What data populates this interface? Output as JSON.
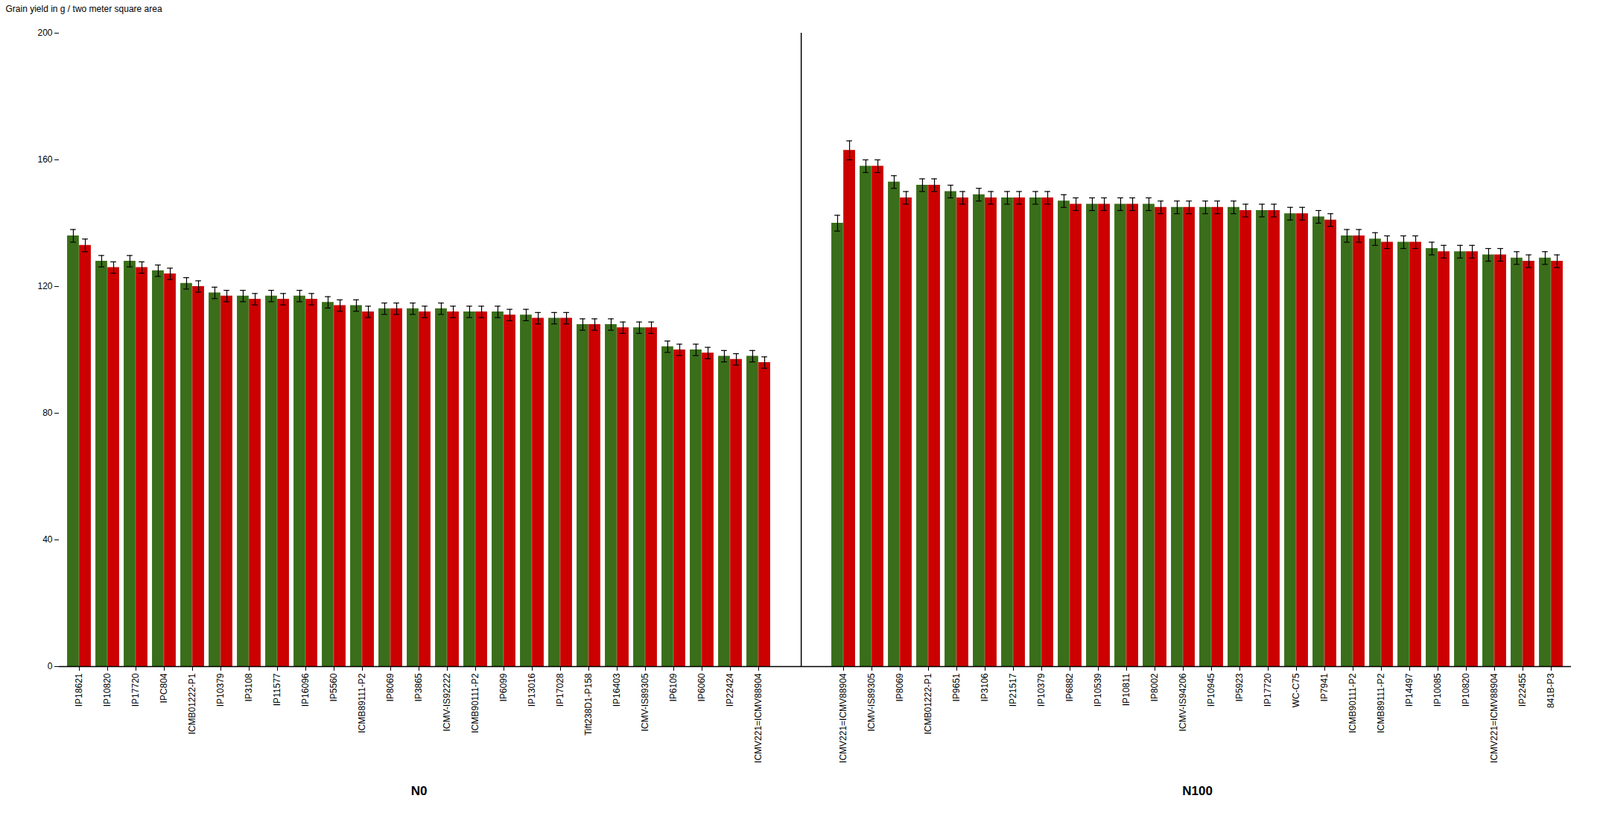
{
  "chart_data": {
    "type": "bar",
    "ylabel": "Grain yield in g / two meter square area",
    "ylim": [
      0,
      200
    ],
    "yticks": [
      0,
      40,
      80,
      120,
      160,
      200
    ],
    "groups": [
      {
        "label": "N0",
        "categories": [
          "IP18621",
          "IP10820",
          "IP17720",
          "IPC804",
          "ICMB01222-P1",
          "IP10379",
          "IP3108",
          "IP11577",
          "IP16096",
          "IP5560",
          "ICMB89111-P2",
          "IP8069",
          "IP3865",
          "ICMV-IS92222",
          "ICMB90111-P2",
          "IP6099",
          "IP13016",
          "IP17028",
          "Tift238D1-P158",
          "IP16403",
          "ICMV-IS89305",
          "IP6109",
          "IP6060",
          "IP22424",
          "ICMV221=ICMV88904"
        ]
      },
      {
        "label": "N100",
        "categories": [
          "ICMV221=ICMV88904",
          "ICMV-IS89305",
          "IP8069",
          "ICMB01222-P1",
          "IP9651",
          "IP3106",
          "IP21517",
          "IP10379",
          "IP6882",
          "IP10539",
          "IP10811",
          "IP8002",
          "ICMV-IS94206",
          "IP10945",
          "IP5923",
          "IP17720",
          "WC-C75",
          "IP7941",
          "ICMB90111-P2",
          "ICMB89111-P2",
          "IP14497",
          "IP10085",
          "IP10820",
          "ICMV221=ICMV88904",
          "IP22455",
          "841B-P3"
        ]
      }
    ],
    "series": [
      {
        "color": "#3a6e1a",
        "values": [
          136,
          128,
          128,
          125,
          121,
          118,
          117,
          117,
          117,
          115,
          114,
          113,
          113,
          113,
          112,
          112,
          111,
          110,
          108,
          108,
          107,
          101,
          100,
          98,
          98,
          140,
          158,
          153,
          152,
          150,
          149,
          148,
          148,
          147,
          146,
          146,
          146,
          145,
          145,
          145,
          144,
          143,
          142,
          136,
          135,
          134,
          132,
          131,
          130,
          129,
          129
        ],
        "errors": [
          2.0,
          1.8,
          1.8,
          1.8,
          1.8,
          1.8,
          1.8,
          1.8,
          1.8,
          1.8,
          1.8,
          1.8,
          1.8,
          1.8,
          1.8,
          1.8,
          1.8,
          1.8,
          1.8,
          1.8,
          1.8,
          1.8,
          1.8,
          1.8,
          1.8,
          2.5,
          2.0,
          2.0,
          2.0,
          2.0,
          2.0,
          2.0,
          2.0,
          2.0,
          2.0,
          2.0,
          2.0,
          2.0,
          2.0,
          2.0,
          2.0,
          2.0,
          2.0,
          2.0,
          2.0,
          2.0,
          2.0,
          2.0,
          2.0,
          2.0,
          2.0
        ]
      },
      {
        "color": "#cc0000",
        "values": [
          133,
          126,
          126,
          124,
          120,
          117,
          116,
          116,
          116,
          114,
          112,
          113,
          112,
          112,
          112,
          111,
          110,
          110,
          108,
          107,
          107,
          100,
          99,
          97,
          96,
          163,
          158,
          148,
          152,
          148,
          148,
          148,
          148,
          146,
          146,
          146,
          145,
          145,
          145,
          144,
          144,
          143,
          141,
          136,
          134,
          134,
          131,
          131,
          130,
          128,
          128
        ],
        "errors": [
          2.0,
          1.8,
          1.8,
          1.8,
          1.8,
          1.8,
          1.8,
          1.8,
          1.8,
          1.8,
          1.8,
          1.8,
          1.8,
          1.8,
          1.8,
          1.8,
          1.8,
          1.8,
          1.8,
          1.8,
          1.8,
          1.8,
          1.8,
          1.8,
          1.8,
          3.0,
          2.0,
          2.0,
          2.0,
          2.0,
          2.0,
          2.0,
          2.0,
          2.0,
          2.0,
          2.0,
          2.0,
          2.0,
          2.0,
          2.0,
          2.0,
          2.0,
          2.0,
          2.0,
          2.0,
          2.0,
          2.0,
          2.0,
          2.0,
          2.0,
          2.0
        ]
      }
    ]
  }
}
